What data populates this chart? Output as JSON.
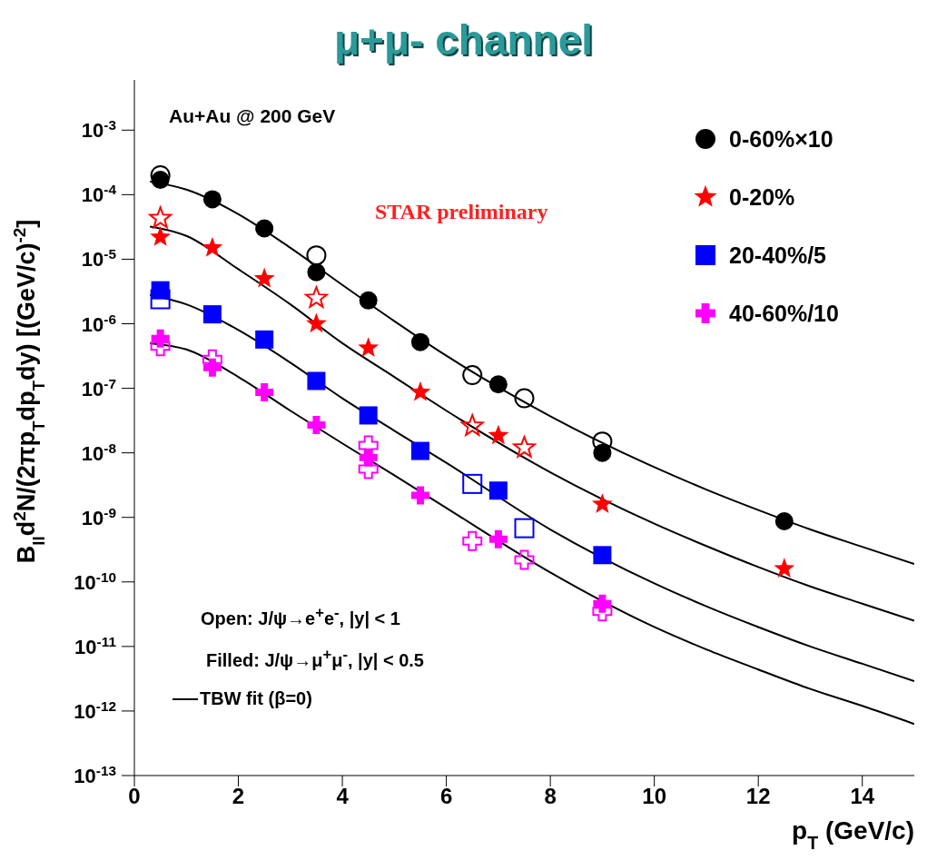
{
  "chart_data": {
    "type": "scatter",
    "title": "μ+μ- channel",
    "xlabel": "p$_{T}$ (GeV/c)",
    "ylabel": "B$_{ll}$d$^{2}$N/(2πp$_{T}$dp$_{T}$dy) [(GeV/c)$^{-2}$]",
    "annotations": [
      "Au+Au @ 200 GeV",
      "STAR preliminary",
      "Open: J/ψ→e$^{+}$e$^{-}$, |y| < 1",
      "Filled: J/ψ→μ$^{+}$μ$^{-}$, |y| < 0.5"
    ],
    "log": "y",
    "grid": false,
    "legend": "top right",
    "xlim": [
      0,
      15
    ],
    "xticks": [
      0,
      2,
      4,
      6,
      8,
      10,
      12,
      14
    ],
    "ylim": [
      1e-13,
      0.006
    ],
    "yticks": [
      {
        "value": 1e-13,
        "label": "10$^{-13}$"
      },
      {
        "value": 1e-12,
        "label": "10$^{-12}$"
      },
      {
        "value": 1e-11,
        "label": "10$^{-11}$"
      },
      {
        "value": 1e-10,
        "label": "10$^{-10}$"
      },
      {
        "value": 1e-09,
        "label": "10$^{-9}$"
      },
      {
        "value": 1e-08,
        "label": "10$^{-8}$"
      },
      {
        "value": 1e-07,
        "label": "10$^{-7}$"
      },
      {
        "value": 1e-06,
        "label": "10$^{-6}$"
      },
      {
        "value": 1e-05,
        "label": "10$^{-5}$"
      },
      {
        "value": 0.0001,
        "label": "10$^{-4}$"
      },
      {
        "value": 0.001,
        "label": "10$^{-3}$"
      }
    ],
    "series": [
      {
        "name": "0-60%×10",
        "color": "#000000",
        "marker": "circle",
        "x": [
          0.5,
          1.5,
          2.5,
          3.5,
          4.5,
          5.5,
          7,
          9,
          12.5
        ],
        "values": [
          0.00017,
          8.5e-05,
          3e-05,
          6.3e-06,
          2.3e-06,
          5.2e-07,
          1.15e-07,
          1e-08,
          8.7e-10
        ]
      },
      {
        "name": "0-20%",
        "color": "#ff0000",
        "marker": "star",
        "x": [
          0.5,
          1.5,
          2.5,
          3.5,
          4.5,
          5.5,
          7,
          9,
          12.5
        ],
        "values": [
          2.2e-05,
          1.5e-05,
          5e-06,
          1e-06,
          4.2e-07,
          8.7e-08,
          1.85e-08,
          1.6e-09,
          1.6e-10
        ]
      },
      {
        "name": "20-40%/5",
        "color": "#0000ff",
        "marker": "square",
        "x": [
          0.5,
          1.5,
          2.5,
          3.5,
          4.5,
          5.5,
          7,
          9
        ],
        "values": [
          3.3e-06,
          1.4e-06,
          5.7e-07,
          1.3e-07,
          3.8e-08,
          1.07e-08,
          2.6e-09,
          2.6e-10
        ]
      },
      {
        "name": "40-60%/10",
        "color": "#ff00ff",
        "marker": "cross",
        "x": [
          0.5,
          1.5,
          2.5,
          3.5,
          4.5,
          5.5,
          7,
          9
        ],
        "values": [
          5.9e-07,
          2.1e-07,
          8.7e-08,
          2.7e-08,
          8.5e-09,
          2.2e-09,
          4.6e-10,
          4.6e-11
        ]
      },
      {
        "color": "#000000",
        "marker": "circle",
        "x": [
          0.5,
          3.5,
          6.5,
          7.5,
          9
        ],
        "values": [
          0.0002,
          1.15e-05,
          1.6e-07,
          7e-08,
          1.5e-08
        ]
      },
      {
        "color": "#ff0000",
        "marker": "star",
        "x": [
          0.5,
          3.5,
          6.5,
          7.5
        ],
        "values": [
          4.3e-05,
          2.5e-06,
          2.6e-08,
          1.2e-08
        ]
      },
      {
        "color": "#0000ff",
        "marker": "square",
        "x": [
          0.5,
          6.5,
          7.5
        ],
        "values": [
          2.4e-06,
          3.3e-09,
          6.8e-10
        ]
      },
      {
        "color": "#ff00ff",
        "marker": "cross",
        "x": [
          0.5,
          1.5,
          4.5,
          4.5,
          6.5,
          7.5,
          9
        ],
        "values": [
          4.5e-07,
          2.8e-07,
          1.3e-08,
          5.6e-09,
          4.3e-10,
          2.2e-10,
          3.5e-11
        ]
      },
      {
        "type": "line",
        "name": "TBW fit (β=0)",
        "color": "#000000",
        "marker": "none",
        "x": [
          0.3,
          1,
          2,
          3,
          4,
          5,
          6,
          8,
          10,
          11,
          12,
          13,
          14,
          15
        ],
        "values": [
          0.00016,
          0.00012,
          5e-05,
          1.5e-05,
          4e-06,
          1.1e-06,
          3.2e-07,
          3.7e-08,
          6e-09,
          2.7e-09,
          1.3e-09,
          6.5e-10,
          3.5e-10,
          1.9e-10
        ]
      },
      {
        "type": "line",
        "color": "#000000",
        "marker": "none",
        "x": [
          0.3,
          1,
          2,
          3,
          4,
          5,
          6,
          8,
          10,
          11,
          12,
          13,
          14,
          15
        ],
        "values": [
          3.2e-05,
          2.3e-05,
          7e-06,
          2e-06,
          5e-07,
          1.5e-07,
          4.5e-08,
          5e-09,
          8e-10,
          3.6e-10,
          1.7e-10,
          8.5e-11,
          4.6e-11,
          2.5e-11
        ]
      },
      {
        "type": "line",
        "color": "#000000",
        "marker": "none",
        "x": [
          0.3,
          1,
          2,
          3,
          4,
          5,
          6,
          8,
          10,
          11,
          12,
          13,
          14,
          15
        ],
        "values": [
          2.8e-06,
          2e-06,
          8e-07,
          2.5e-07,
          7e-08,
          2.2e-08,
          7e-09,
          6.5e-10,
          9.5e-11,
          4.2e-11,
          2e-11,
          1e-11,
          5.4e-12,
          2.9e-12
        ]
      },
      {
        "type": "line",
        "color": "#000000",
        "marker": "none",
        "x": [
          0.3,
          1,
          2,
          3,
          4,
          5,
          6,
          8,
          10,
          11,
          12,
          13,
          14,
          15
        ],
        "values": [
          5e-07,
          4e-07,
          1.5e-07,
          4.5e-08,
          1.4e-08,
          4.5e-09,
          1.4e-09,
          1.4e-10,
          2e-11,
          9e-12,
          4.4e-12,
          2.2e-12,
          1.2e-12,
          6.3e-13
        ]
      }
    ]
  }
}
